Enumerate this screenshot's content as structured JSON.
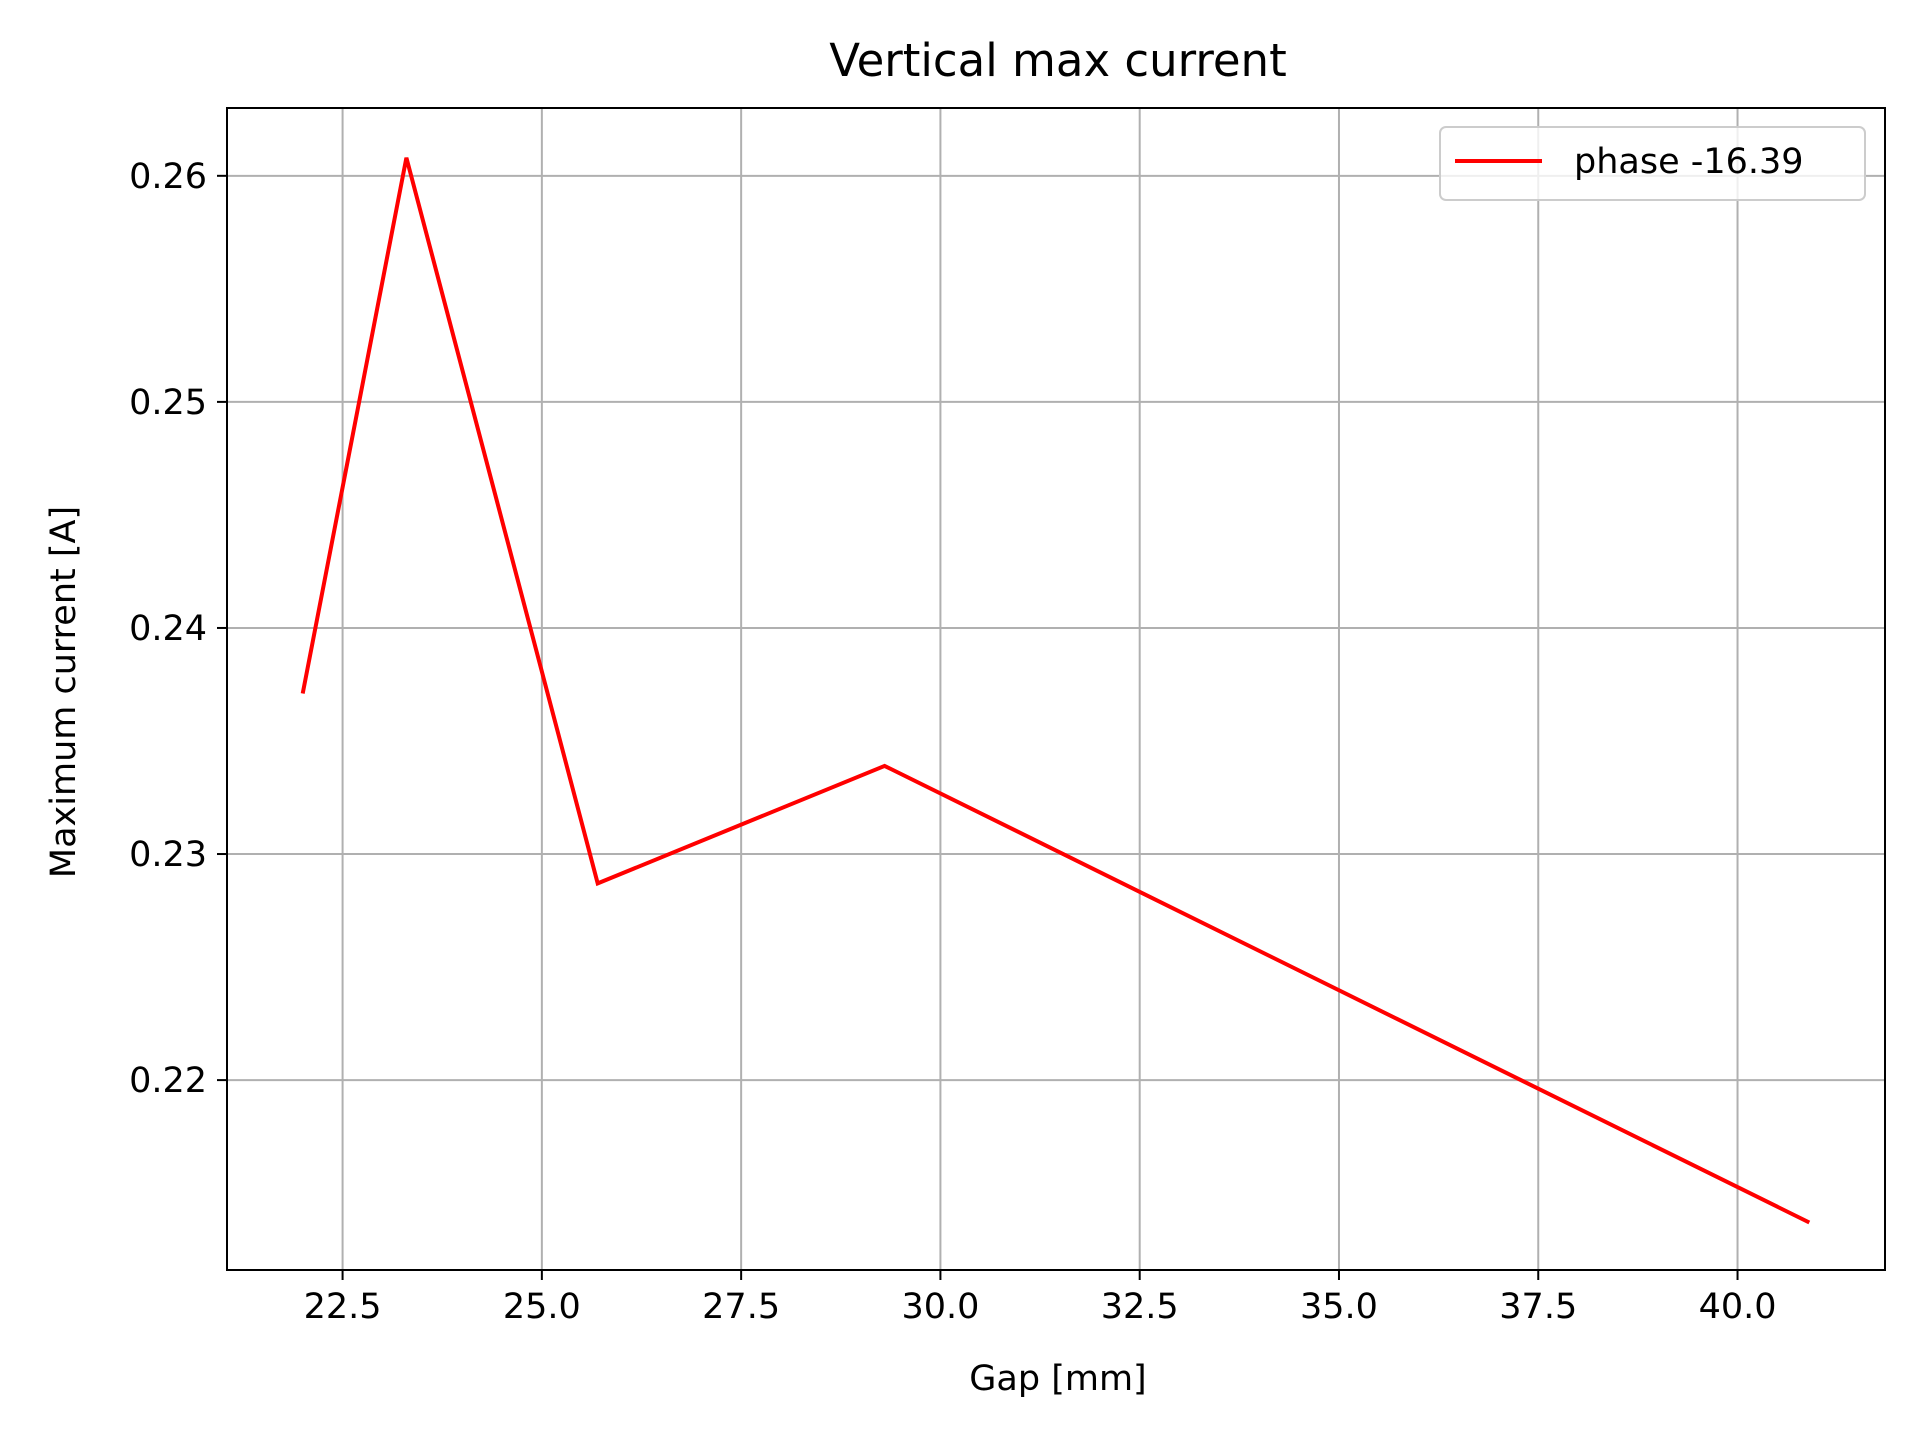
{
  "chart_data": {
    "type": "line",
    "title": "Vertical max current",
    "xlabel": "Gap [mm]",
    "ylabel": "Maximum current [A]",
    "xlim": [
      21.05,
      41.85
    ],
    "ylim": [
      0.2116,
      0.263
    ],
    "xticks": [
      22.5,
      25.0,
      27.5,
      30.0,
      32.5,
      35.0,
      37.5,
      40.0
    ],
    "xtick_labels": [
      "22.5",
      "25.0",
      "27.5",
      "30.0",
      "32.5",
      "35.0",
      "37.5",
      "40.0"
    ],
    "yticks": [
      0.22,
      0.23,
      0.24,
      0.25,
      0.26
    ],
    "ytick_labels": [
      "0.22",
      "0.23",
      "0.24",
      "0.25",
      "0.26"
    ],
    "grid": true,
    "legend_position": "upper right",
    "series": [
      {
        "name": "phase -16.39",
        "color": "#ff0000",
        "x": [
          22.0,
          23.3,
          25.7,
          29.3,
          40.9
        ],
        "y": [
          0.2371,
          0.2608,
          0.2287,
          0.2339,
          0.2137
        ]
      }
    ]
  }
}
